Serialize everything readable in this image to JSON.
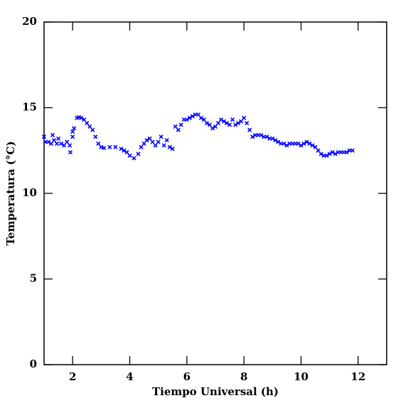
{
  "chart_data": {
    "type": "scatter",
    "x_label": "Tiempo Universal (h)",
    "y_label": "Temperatura (°C)",
    "xlim": [
      1,
      13
    ],
    "ylim": [
      0,
      20
    ],
    "xticks": [
      2,
      4,
      6,
      8,
      10,
      12
    ],
    "yticks": [
      0,
      5,
      10,
      15,
      20
    ],
    "series": [
      {
        "name": "Temperatura",
        "color": "#0000ff",
        "x": [
          1.0,
          1.05,
          1.15,
          1.25,
          1.3,
          1.35,
          1.45,
          1.5,
          1.6,
          1.7,
          1.8,
          1.9,
          1.92,
          2.0,
          2.0,
          2.05,
          2.15,
          2.22,
          2.3,
          2.4,
          2.5,
          2.6,
          2.7,
          2.8,
          2.9,
          3.0,
          3.1,
          3.3,
          3.5,
          3.7,
          3.8,
          3.9,
          4.0,
          4.15,
          4.3,
          4.4,
          4.5,
          4.6,
          4.7,
          4.8,
          4.9,
          5.0,
          5.1,
          5.2,
          5.3,
          5.4,
          5.5,
          5.6,
          5.7,
          5.8,
          5.9,
          6.0,
          6.1,
          6.2,
          6.3,
          6.4,
          6.5,
          6.6,
          6.7,
          6.8,
          6.9,
          7.0,
          7.1,
          7.2,
          7.3,
          7.4,
          7.5,
          7.6,
          7.7,
          7.8,
          7.9,
          8.0,
          8.1,
          8.2,
          8.3,
          8.4,
          8.5,
          8.6,
          8.7,
          8.8,
          8.9,
          9.0,
          9.1,
          9.2,
          9.3,
          9.4,
          9.5,
          9.6,
          9.7,
          9.8,
          9.9,
          10.0,
          10.1,
          10.2,
          10.3,
          10.4,
          10.5,
          10.6,
          10.7,
          10.8,
          10.9,
          11.0,
          11.1,
          11.2,
          11.3,
          11.4,
          11.5,
          11.6,
          11.7,
          11.8
        ],
        "values": [
          13.3,
          13.0,
          13.0,
          12.9,
          13.4,
          13.1,
          12.9,
          13.2,
          12.9,
          12.8,
          13.0,
          12.8,
          12.4,
          13.6,
          13.3,
          13.8,
          14.4,
          14.45,
          14.4,
          14.3,
          14.1,
          13.9,
          13.7,
          13.3,
          12.9,
          12.7,
          12.65,
          12.7,
          12.7,
          12.6,
          12.5,
          12.4,
          12.2,
          12.05,
          12.3,
          12.7,
          12.9,
          13.1,
          13.2,
          13.0,
          12.8,
          13.0,
          13.3,
          12.8,
          13.1,
          12.7,
          12.6,
          13.9,
          13.7,
          14.0,
          14.3,
          14.3,
          14.4,
          14.5,
          14.6,
          14.6,
          14.4,
          14.3,
          14.1,
          14.0,
          13.8,
          13.9,
          14.1,
          14.3,
          14.2,
          14.1,
          14.0,
          14.3,
          14.0,
          14.1,
          14.2,
          14.4,
          14.1,
          13.7,
          13.3,
          13.4,
          13.4,
          13.4,
          13.3,
          13.3,
          13.2,
          13.2,
          13.1,
          13.0,
          12.9,
          12.9,
          12.8,
          12.9,
          12.9,
          12.9,
          12.9,
          12.8,
          12.9,
          13.0,
          12.9,
          12.8,
          12.7,
          12.5,
          12.3,
          12.2,
          12.2,
          12.3,
          12.4,
          12.3,
          12.4,
          12.4,
          12.4,
          12.4,
          12.5,
          12.5
        ]
      }
    ]
  }
}
